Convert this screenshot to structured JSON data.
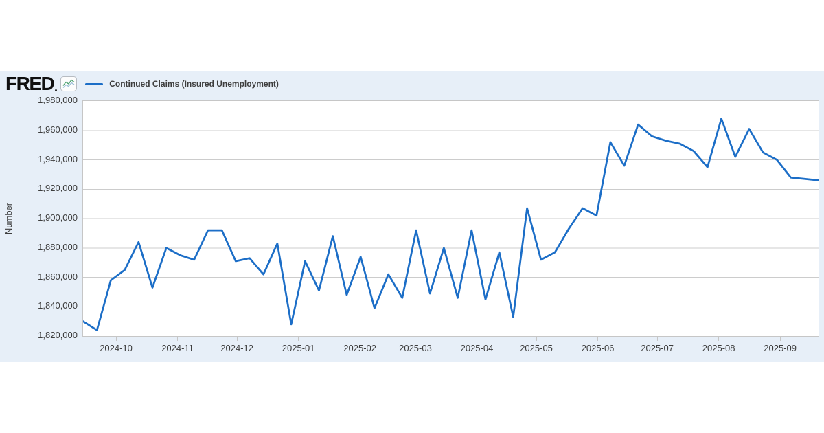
{
  "header": {
    "logo_text": "FRED",
    "legend_label": "Continued Claims (Insured Unemployment)"
  },
  "colors": {
    "line": "#1c6ec7",
    "card_background": "#e7eff8",
    "plot_background": "#ffffff",
    "grid": "#cccccc",
    "frame": "#c6c6c6",
    "text": "#3d3d3d",
    "logo": "#101010"
  },
  "chart_data": {
    "type": "line",
    "title": "",
    "xlabel": "",
    "ylabel": "Number",
    "legend_position": "top",
    "grid": "horizontal-only",
    "ylim": [
      1820000,
      1980000
    ],
    "x_range": [
      "2024-09-14",
      "2025-09-20"
    ],
    "frequency": "weekly",
    "y_ticks": [
      {
        "value": 1980000,
        "label": "1,980,000"
      },
      {
        "value": 1960000,
        "label": "1,960,000"
      },
      {
        "value": 1940000,
        "label": "1,940,000"
      },
      {
        "value": 1920000,
        "label": "1,920,000"
      },
      {
        "value": 1900000,
        "label": "1,900,000"
      },
      {
        "value": 1880000,
        "label": "1,880,000"
      },
      {
        "value": 1860000,
        "label": "1,860,000"
      },
      {
        "value": 1840000,
        "label": "1,840,000"
      },
      {
        "value": 1820000,
        "label": "1,820,000"
      }
    ],
    "x_ticks": [
      {
        "date": "2024-10-01",
        "label": "2024-10"
      },
      {
        "date": "2024-11-01",
        "label": "2024-11"
      },
      {
        "date": "2024-12-01",
        "label": "2024-12"
      },
      {
        "date": "2025-01-01",
        "label": "2025-01"
      },
      {
        "date": "2025-02-01",
        "label": "2025-02"
      },
      {
        "date": "2025-03-01",
        "label": "2025-03"
      },
      {
        "date": "2025-04-01",
        "label": "2025-04"
      },
      {
        "date": "2025-05-01",
        "label": "2025-05"
      },
      {
        "date": "2025-06-01",
        "label": "2025-06"
      },
      {
        "date": "2025-07-01",
        "label": "2025-07"
      },
      {
        "date": "2025-08-01",
        "label": "2025-08"
      },
      {
        "date": "2025-09-01",
        "label": "2025-09"
      }
    ],
    "series": [
      {
        "name": "Continued Claims (Insured Unemployment)",
        "color": "#1c6ec7",
        "dates": [
          "2024-09-14",
          "2024-09-21",
          "2024-09-28",
          "2024-10-05",
          "2024-10-12",
          "2024-10-19",
          "2024-10-26",
          "2024-11-02",
          "2024-11-09",
          "2024-11-16",
          "2024-11-23",
          "2024-11-30",
          "2024-12-07",
          "2024-12-14",
          "2024-12-21",
          "2024-12-28",
          "2025-01-04",
          "2025-01-11",
          "2025-01-18",
          "2025-01-25",
          "2025-02-01",
          "2025-02-08",
          "2025-02-15",
          "2025-02-22",
          "2025-03-01",
          "2025-03-08",
          "2025-03-15",
          "2025-03-22",
          "2025-03-29",
          "2025-04-05",
          "2025-04-12",
          "2025-04-19",
          "2025-04-26",
          "2025-05-03",
          "2025-05-10",
          "2025-05-17",
          "2025-05-24",
          "2025-05-31",
          "2025-06-07",
          "2025-06-14",
          "2025-06-21",
          "2025-06-28",
          "2025-07-05",
          "2025-07-12",
          "2025-07-19",
          "2025-07-26",
          "2025-08-02",
          "2025-08-09",
          "2025-08-16",
          "2025-08-23",
          "2025-08-30",
          "2025-09-06",
          "2025-09-13",
          "2025-09-20"
        ],
        "values": [
          1830000,
          1824000,
          1858000,
          1865000,
          1884000,
          1853000,
          1880000,
          1875000,
          1872000,
          1892000,
          1892000,
          1871000,
          1873000,
          1862000,
          1883000,
          1828000,
          1871000,
          1851000,
          1888000,
          1848000,
          1874000,
          1839000,
          1862000,
          1846000,
          1892000,
          1849000,
          1880000,
          1846000,
          1892000,
          1845000,
          1877000,
          1833000,
          1907000,
          1872000,
          1877000,
          1893000,
          1907000,
          1902000,
          1952000,
          1936000,
          1964000,
          1956000,
          1953000,
          1951000,
          1946000,
          1935000,
          1968000,
          1942000,
          1961000,
          1945000,
          1940000,
          1928000,
          1927000,
          1926000
        ]
      }
    ]
  }
}
